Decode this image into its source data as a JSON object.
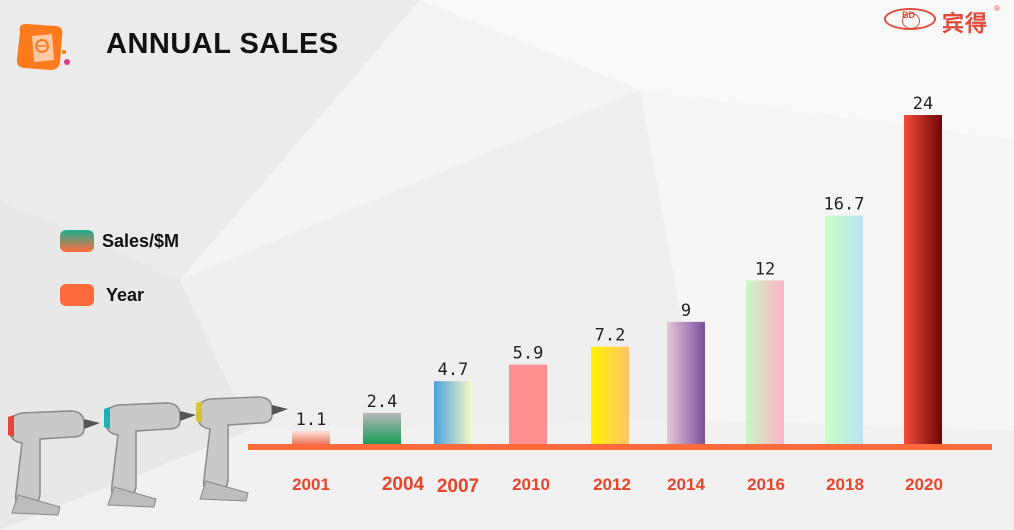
{
  "title": "ANNUAL SALES",
  "brand": {
    "mark": "BD",
    "name": "宾得",
    "registered": "®"
  },
  "legend": [
    {
      "label": "Sales/$M",
      "colors": [
        "#1fae8f",
        "#ff6a3d"
      ]
    },
    {
      "label": "Year",
      "colors": [
        "#ff6a3d",
        "#ff6a3d"
      ]
    }
  ],
  "colors": {
    "accent": "#ff6a3d",
    "year_label": "#e8452c"
  },
  "chart_data": {
    "type": "bar",
    "categories": [
      "2001",
      "2004",
      "2007",
      "2010",
      "2012",
      "2014",
      "2016",
      "2018",
      "2020"
    ],
    "values": [
      1.1,
      2.4,
      4.7,
      5.9,
      7.2,
      9,
      12,
      16.7,
      24
    ],
    "value_labels": [
      "1.1",
      "2.4",
      "4.7",
      "5.9",
      "7.2",
      "9",
      "12",
      "16.7",
      "24"
    ],
    "ylim": [
      0,
      24
    ],
    "grid": false,
    "legend_position": "left",
    "bar_colors": [
      [
        "#fbe3dc",
        "#e9694c"
      ],
      [
        "#b8b8b8",
        "#0f9b53"
      ],
      [
        "#4aa3df",
        "#f7f7c4"
      ],
      [
        "#ff8f8f",
        "#ff8f8f"
      ],
      [
        "#fff200",
        "#ffc46b"
      ],
      [
        "#e6c8d8",
        "#7a4f9c"
      ],
      [
        "#c9f7c4",
        "#ffb3c6"
      ],
      [
        "#c9ffc4",
        "#b9e3f2"
      ],
      [
        "#f24d3a",
        "#6e0505"
      ]
    ]
  }
}
